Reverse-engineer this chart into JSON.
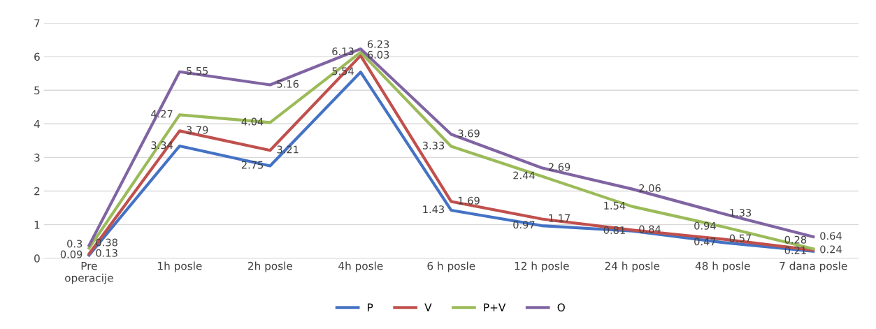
{
  "chart_data": {
    "type": "line",
    "categories": [
      "Pre\noperacije",
      "1h posle",
      "2h posle",
      "4h posle",
      "6 h posle",
      "12 h posle",
      "24 h posle",
      "48 h posle",
      "7 dana posle"
    ],
    "series": [
      {
        "name": "P",
        "color": "#4472c4",
        "values": [
          0.09,
          3.34,
          2.75,
          5.54,
          1.43,
          0.97,
          0.81,
          0.47,
          0.21
        ]
      },
      {
        "name": "V",
        "color": "#c0504d",
        "values": [
          0.13,
          3.79,
          3.21,
          6.03,
          1.69,
          1.17,
          0.84,
          0.57,
          0.24
        ]
      },
      {
        "name": "P+V",
        "color": "#9bbb59",
        "values": [
          0.3,
          4.27,
          4.04,
          6.13,
          3.33,
          2.44,
          1.54,
          0.94,
          0.28
        ]
      },
      {
        "name": "O",
        "color": "#8064a2",
        "values": [
          0.38,
          5.55,
          5.16,
          6.23,
          3.69,
          2.69,
          2.06,
          1.33,
          0.64
        ]
      }
    ],
    "ylim": [
      0,
      7
    ],
    "yticks": [
      0,
      1,
      2,
      3,
      4,
      5,
      6,
      7
    ],
    "grid": "y",
    "legend": "bottom",
    "data_labels": true,
    "marker": "none",
    "line_style": "solid"
  }
}
